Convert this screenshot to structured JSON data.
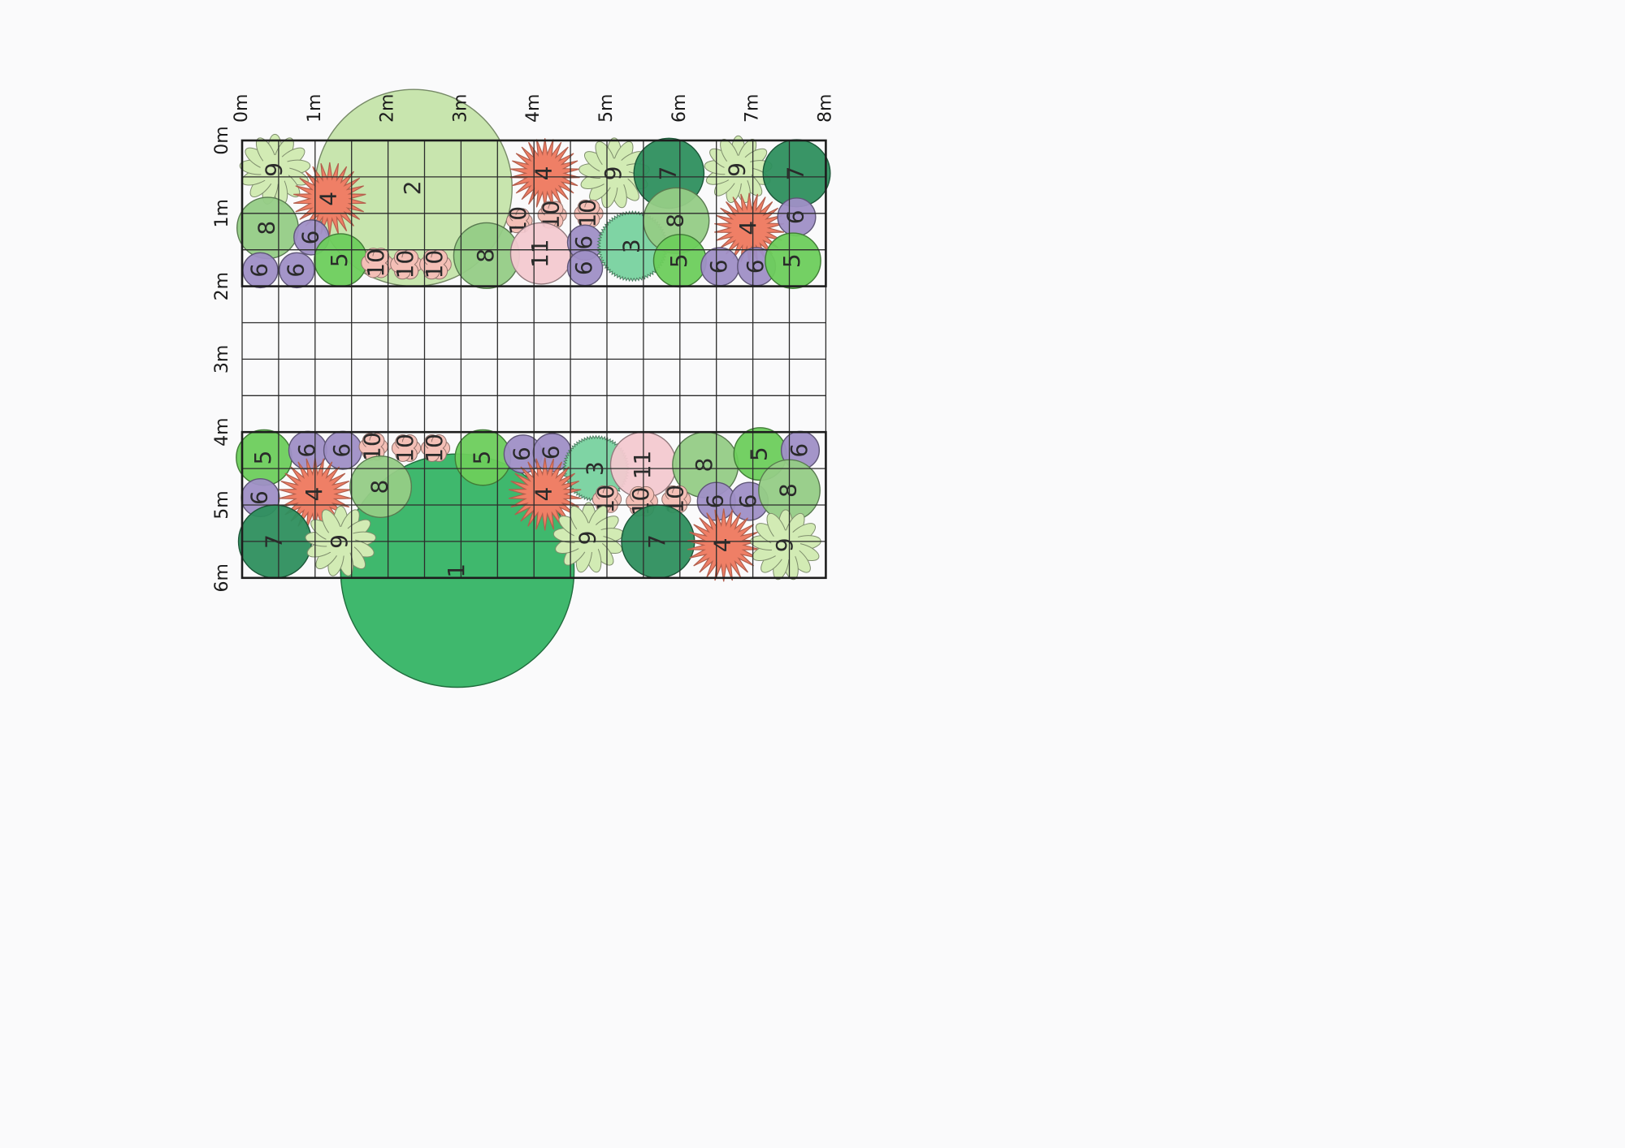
{
  "plan": {
    "x_axis_labels": [
      "0m",
      "1m",
      "2m",
      "3m",
      "4m",
      "5m",
      "6m",
      "7m",
      "8m"
    ],
    "y_axis_labels": [
      "0m",
      "1m",
      "2m",
      "3m",
      "4m",
      "5m",
      "6m"
    ],
    "beds": [
      {
        "name": "upper-bed",
        "from_m": 0,
        "to_m": 2
      },
      {
        "name": "lower-bed",
        "from_m": 4,
        "to_m": 6
      }
    ],
    "plants": [
      {
        "label": "2",
        "kind": "large-round",
        "x_m": 2.35,
        "y_m": 0.65,
        "r_m": 1.35,
        "color": "#c5e4aa"
      },
      {
        "label": "9",
        "kind": "daisy",
        "x_m": 0.45,
        "y_m": 0.4,
        "r_m": 0.48,
        "color": "#d2ebb4"
      },
      {
        "label": "4",
        "kind": "spiky",
        "x_m": 1.2,
        "y_m": 0.8,
        "r_m": 0.5,
        "color": "#ef7f66"
      },
      {
        "label": "4",
        "kind": "spiky",
        "x_m": 4.15,
        "y_m": 0.45,
        "r_m": 0.48,
        "color": "#ef7f66"
      },
      {
        "label": "9",
        "kind": "daisy",
        "x_m": 5.1,
        "y_m": 0.45,
        "r_m": 0.48,
        "color": "#d2ebb4"
      },
      {
        "label": "7",
        "kind": "round",
        "x_m": 5.85,
        "y_m": 0.45,
        "r_m": 0.48,
        "color": "#2e8f5e"
      },
      {
        "label": "9",
        "kind": "daisy",
        "x_m": 6.8,
        "y_m": 0.4,
        "r_m": 0.46,
        "color": "#d2ebb4"
      },
      {
        "label": "7",
        "kind": "round",
        "x_m": 7.6,
        "y_m": 0.45,
        "r_m": 0.46,
        "color": "#2e8f5e"
      },
      {
        "label": "8",
        "kind": "round",
        "x_m": 0.35,
        "y_m": 1.2,
        "r_m": 0.42,
        "color": "#95cc86"
      },
      {
        "label": "6",
        "kind": "round",
        "x_m": 0.95,
        "y_m": 1.33,
        "r_m": 0.24,
        "color": "#9f8fc6"
      },
      {
        "label": "5",
        "kind": "round",
        "x_m": 1.35,
        "y_m": 1.64,
        "r_m": 0.36,
        "color": "#6dce5c"
      },
      {
        "label": "6",
        "kind": "round",
        "x_m": 0.25,
        "y_m": 1.78,
        "r_m": 0.24,
        "color": "#9f8fc6"
      },
      {
        "label": "6",
        "kind": "round",
        "x_m": 0.75,
        "y_m": 1.78,
        "r_m": 0.24,
        "color": "#9f8fc6"
      },
      {
        "label": "10",
        "kind": "flower",
        "x_m": 1.85,
        "y_m": 1.68,
        "r_m": 0.22,
        "color": "#f4bfb6"
      },
      {
        "label": "10",
        "kind": "flower",
        "x_m": 2.25,
        "y_m": 1.7,
        "r_m": 0.22,
        "color": "#f4bfb6"
      },
      {
        "label": "10",
        "kind": "flower",
        "x_m": 2.65,
        "y_m": 1.7,
        "r_m": 0.22,
        "color": "#f4bfb6"
      },
      {
        "label": "8",
        "kind": "round",
        "x_m": 3.35,
        "y_m": 1.58,
        "r_m": 0.45,
        "color": "#95cc86"
      },
      {
        "label": "10",
        "kind": "flower",
        "x_m": 3.8,
        "y_m": 1.1,
        "r_m": 0.18,
        "color": "#f4bfb6"
      },
      {
        "label": "10",
        "kind": "flower",
        "x_m": 4.25,
        "y_m": 1.02,
        "r_m": 0.2,
        "color": "#f4bfb6"
      },
      {
        "label": "11",
        "kind": "round",
        "x_m": 4.1,
        "y_m": 1.55,
        "r_m": 0.42,
        "color": "#f3c9d0"
      },
      {
        "label": "10",
        "kind": "flower",
        "x_m": 4.75,
        "y_m": 1.0,
        "r_m": 0.2,
        "color": "#f4bfb6"
      },
      {
        "label": "6",
        "kind": "round",
        "x_m": 4.7,
        "y_m": 1.4,
        "r_m": 0.24,
        "color": "#9f8fc6"
      },
      {
        "label": "6",
        "kind": "round",
        "x_m": 4.7,
        "y_m": 1.75,
        "r_m": 0.24,
        "color": "#9f8fc6"
      },
      {
        "label": "3",
        "kind": "fuzzy",
        "x_m": 5.35,
        "y_m": 1.45,
        "r_m": 0.48,
        "color": "#7fd4a4"
      },
      {
        "label": "8",
        "kind": "round",
        "x_m": 5.95,
        "y_m": 1.1,
        "r_m": 0.45,
        "color": "#95cc86"
      },
      {
        "label": "5",
        "kind": "round",
        "x_m": 6.0,
        "y_m": 1.65,
        "r_m": 0.36,
        "color": "#6dce5c"
      },
      {
        "label": "4",
        "kind": "spiky",
        "x_m": 6.95,
        "y_m": 1.2,
        "r_m": 0.48,
        "color": "#ef7f66"
      },
      {
        "label": "6",
        "kind": "round",
        "x_m": 7.6,
        "y_m": 1.05,
        "r_m": 0.26,
        "color": "#9f8fc6"
      },
      {
        "label": "6",
        "kind": "round",
        "x_m": 6.55,
        "y_m": 1.73,
        "r_m": 0.26,
        "color": "#9f8fc6"
      },
      {
        "label": "6",
        "kind": "round",
        "x_m": 7.05,
        "y_m": 1.73,
        "r_m": 0.26,
        "color": "#9f8fc6"
      },
      {
        "label": "5",
        "kind": "round",
        "x_m": 7.55,
        "y_m": 1.65,
        "r_m": 0.38,
        "color": "#6dce5c"
      },
      {
        "label": "1",
        "kind": "large-round",
        "x_m": 2.95,
        "y_m": 5.9,
        "r_m": 1.6,
        "color": "#35b465"
      },
      {
        "label": "5",
        "kind": "round",
        "x_m": 0.3,
        "y_m": 4.35,
        "r_m": 0.38,
        "color": "#6dce5c"
      },
      {
        "label": "6",
        "kind": "round",
        "x_m": 0.9,
        "y_m": 4.25,
        "r_m": 0.26,
        "color": "#9f8fc6"
      },
      {
        "label": "6",
        "kind": "round",
        "x_m": 1.38,
        "y_m": 4.25,
        "r_m": 0.26,
        "color": "#9f8fc6"
      },
      {
        "label": "10",
        "kind": "flower",
        "x_m": 1.8,
        "y_m": 4.2,
        "r_m": 0.2,
        "color": "#f4bfb6"
      },
      {
        "label": "10",
        "kind": "flower",
        "x_m": 2.25,
        "y_m": 4.22,
        "r_m": 0.2,
        "color": "#f4bfb6"
      },
      {
        "label": "10",
        "kind": "flower",
        "x_m": 2.65,
        "y_m": 4.22,
        "r_m": 0.2,
        "color": "#f4bfb6"
      },
      {
        "label": "5",
        "kind": "round",
        "x_m": 3.3,
        "y_m": 4.35,
        "r_m": 0.38,
        "color": "#6dce5c"
      },
      {
        "label": "6",
        "kind": "round",
        "x_m": 3.85,
        "y_m": 4.3,
        "r_m": 0.26,
        "color": "#9f8fc6"
      },
      {
        "label": "6",
        "kind": "round",
        "x_m": 4.25,
        "y_m": 4.28,
        "r_m": 0.26,
        "color": "#9f8fc6"
      },
      {
        "label": "3",
        "kind": "fuzzy",
        "x_m": 4.85,
        "y_m": 4.5,
        "r_m": 0.45,
        "color": "#7fd4a4"
      },
      {
        "label": "11",
        "kind": "round",
        "x_m": 5.5,
        "y_m": 4.45,
        "r_m": 0.45,
        "color": "#f3c9d0"
      },
      {
        "label": "8",
        "kind": "round",
        "x_m": 6.35,
        "y_m": 4.45,
        "r_m": 0.45,
        "color": "#95cc86"
      },
      {
        "label": "5",
        "kind": "round",
        "x_m": 7.1,
        "y_m": 4.3,
        "r_m": 0.36,
        "color": "#6dce5c"
      },
      {
        "label": "6",
        "kind": "round",
        "x_m": 7.65,
        "y_m": 4.25,
        "r_m": 0.26,
        "color": "#9f8fc6"
      },
      {
        "label": "6",
        "kind": "round",
        "x_m": 0.25,
        "y_m": 4.9,
        "r_m": 0.26,
        "color": "#9f8fc6"
      },
      {
        "label": "4",
        "kind": "spiky",
        "x_m": 1.0,
        "y_m": 4.85,
        "r_m": 0.5,
        "color": "#ef7f66"
      },
      {
        "label": "8",
        "kind": "round",
        "x_m": 1.9,
        "y_m": 4.75,
        "r_m": 0.42,
        "color": "#95cc86"
      },
      {
        "label": "4",
        "kind": "spiky",
        "x_m": 4.15,
        "y_m": 4.85,
        "r_m": 0.5,
        "color": "#ef7f66"
      },
      {
        "label": "10",
        "kind": "flower",
        "x_m": 5.0,
        "y_m": 4.92,
        "r_m": 0.2,
        "color": "#f4bfb6"
      },
      {
        "label": "10",
        "kind": "flower",
        "x_m": 5.48,
        "y_m": 4.95,
        "r_m": 0.22,
        "color": "#f4bfb6"
      },
      {
        "label": "10",
        "kind": "flower",
        "x_m": 5.95,
        "y_m": 4.92,
        "r_m": 0.2,
        "color": "#f4bfb6"
      },
      {
        "label": "6",
        "kind": "round",
        "x_m": 6.5,
        "y_m": 4.95,
        "r_m": 0.26,
        "color": "#9f8fc6"
      },
      {
        "label": "6",
        "kind": "round",
        "x_m": 6.95,
        "y_m": 4.95,
        "r_m": 0.26,
        "color": "#9f8fc6"
      },
      {
        "label": "8",
        "kind": "round",
        "x_m": 7.5,
        "y_m": 4.8,
        "r_m": 0.42,
        "color": "#95cc86"
      },
      {
        "label": "7",
        "kind": "round",
        "x_m": 0.45,
        "y_m": 5.5,
        "r_m": 0.5,
        "color": "#2e8f5e"
      },
      {
        "label": "9",
        "kind": "daisy",
        "x_m": 1.35,
        "y_m": 5.5,
        "r_m": 0.48,
        "color": "#d2ebb4"
      },
      {
        "label": "9",
        "kind": "daisy",
        "x_m": 4.75,
        "y_m": 5.45,
        "r_m": 0.48,
        "color": "#d2ebb4"
      },
      {
        "label": "7",
        "kind": "round",
        "x_m": 5.7,
        "y_m": 5.5,
        "r_m": 0.5,
        "color": "#2e8f5e"
      },
      {
        "label": "4",
        "kind": "spiky",
        "x_m": 6.6,
        "y_m": 5.55,
        "r_m": 0.5,
        "color": "#ef7f66"
      },
      {
        "label": "9",
        "kind": "daisy",
        "x_m": 7.45,
        "y_m": 5.55,
        "r_m": 0.48,
        "color": "#d2ebb4"
      }
    ]
  }
}
